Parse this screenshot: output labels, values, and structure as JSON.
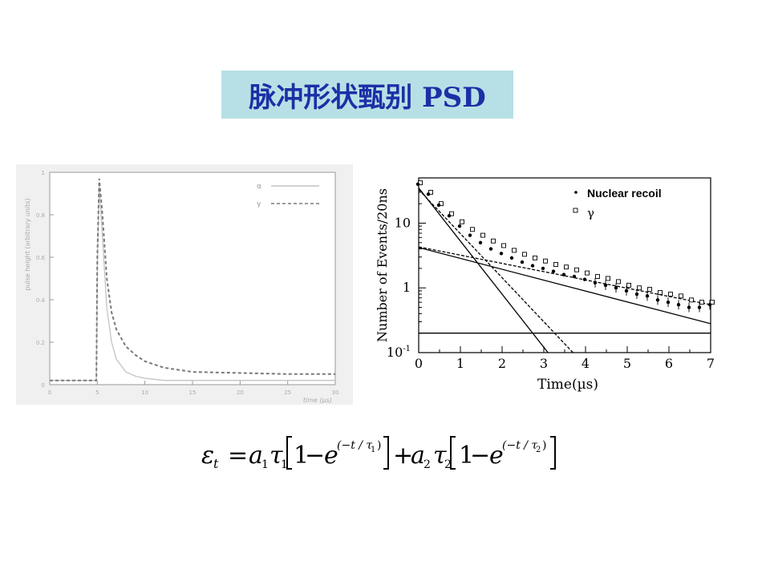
{
  "title": {
    "text": "脉冲形状甄别 PSD"
  },
  "chart_data": [
    {
      "type": "line",
      "title": "",
      "xlabel": "time (µs)",
      "ylabel": "pulse height (arbitrary units)",
      "xlim": [
        0,
        30
      ],
      "ylim": [
        0,
        1
      ],
      "x_ticks": [
        "0",
        "5",
        "10",
        "15",
        "20",
        "25",
        "30"
      ],
      "y_ticks": [
        "0",
        "0.2",
        "0.4",
        "0.6",
        "0.8",
        "1"
      ],
      "grid": false,
      "legend_position": "top-right",
      "series": [
        {
          "name": "α",
          "style": "solid",
          "color": "#c4c4c4",
          "x": [
            0,
            4.9,
            5.0,
            5.2,
            5.5,
            6,
            6.5,
            7,
            8,
            9,
            10,
            12,
            15,
            20,
            25,
            30
          ],
          "y": [
            0.02,
            0.02,
            0.55,
            0.95,
            0.72,
            0.36,
            0.2,
            0.12,
            0.06,
            0.04,
            0.03,
            0.02,
            0.02,
            0.02,
            0.02,
            0.02
          ]
        },
        {
          "name": "γ",
          "style": "dashed",
          "color": "#7a7a7a",
          "x": [
            0,
            4.9,
            5.0,
            5.2,
            5.5,
            6,
            6.5,
            7,
            8,
            9,
            10,
            12,
            15,
            20,
            25,
            30
          ],
          "y": [
            0.02,
            0.02,
            0.6,
            0.97,
            0.82,
            0.5,
            0.34,
            0.26,
            0.18,
            0.14,
            0.11,
            0.08,
            0.06,
            0.055,
            0.05,
            0.05
          ]
        }
      ]
    },
    {
      "type": "scatter",
      "title": "",
      "xlabel": "Time(µs)",
      "ylabel": "Number of Events/20ns",
      "xlim": [
        0,
        7
      ],
      "ylim": [
        0.1,
        50
      ],
      "log_y": true,
      "x_ticks": [
        "0",
        "1",
        "2",
        "3",
        "4",
        "5",
        "6",
        "7"
      ],
      "y_ticks": [
        {
          "value": 0.1,
          "base": "10",
          "exp": "-1"
        },
        {
          "value": 1,
          "label": "1"
        },
        {
          "value": 10,
          "label": "10"
        }
      ],
      "legend_position": "top-right",
      "series": [
        {
          "name": "Nuclear recoil",
          "marker": "filled-dot",
          "x": [
            0,
            0.25,
            0.5,
            0.75,
            1,
            1.25,
            1.5,
            1.75,
            2,
            2.25,
            2.5,
            2.75,
            3,
            3.25,
            3.5,
            3.75,
            4,
            4.25,
            4.5,
            4.75,
            5,
            5.25,
            5.5,
            5.75,
            6,
            6.25,
            6.5,
            6.75,
            7
          ],
          "y": [
            40,
            28,
            19,
            13,
            9,
            6.5,
            5,
            4,
            3.4,
            2.9,
            2.5,
            2.2,
            2.0,
            1.8,
            1.6,
            1.5,
            1.35,
            1.2,
            1.1,
            1.0,
            0.9,
            0.8,
            0.75,
            0.65,
            0.6,
            0.55,
            0.5,
            0.5,
            0.55
          ]
        },
        {
          "name": "γ",
          "marker": "open-square",
          "x": [
            0,
            0.25,
            0.5,
            0.75,
            1,
            1.25,
            1.5,
            1.75,
            2,
            2.25,
            2.5,
            2.75,
            3,
            3.25,
            3.5,
            3.75,
            4,
            4.25,
            4.5,
            4.75,
            5,
            5.25,
            5.5,
            5.75,
            6,
            6.25,
            6.5,
            6.75,
            7
          ],
          "y": [
            42,
            30,
            20,
            14,
            10.5,
            8,
            6.5,
            5.3,
            4.5,
            3.8,
            3.3,
            2.9,
            2.6,
            2.3,
            2.1,
            1.9,
            1.7,
            1.5,
            1.4,
            1.25,
            1.1,
            1.0,
            0.95,
            0.85,
            0.8,
            0.75,
            0.65,
            0.6,
            0.6
          ]
        }
      ],
      "fit_lines": [
        {
          "style": "solid",
          "from": [
            0,
            35
          ],
          "to": [
            3.1,
            0.1
          ]
        },
        {
          "style": "dashed",
          "from": [
            0,
            33
          ],
          "to": [
            3.7,
            0.1
          ]
        },
        {
          "style": "solid",
          "from": [
            0,
            4.2
          ],
          "to": [
            7,
            0.28
          ]
        },
        {
          "style": "dashed",
          "from": [
            0,
            4.3
          ],
          "to": [
            7,
            0.55
          ]
        },
        {
          "style": "solid",
          "from": [
            0,
            0.2
          ],
          "to": [
            7,
            0.2
          ]
        }
      ]
    }
  ]
}
